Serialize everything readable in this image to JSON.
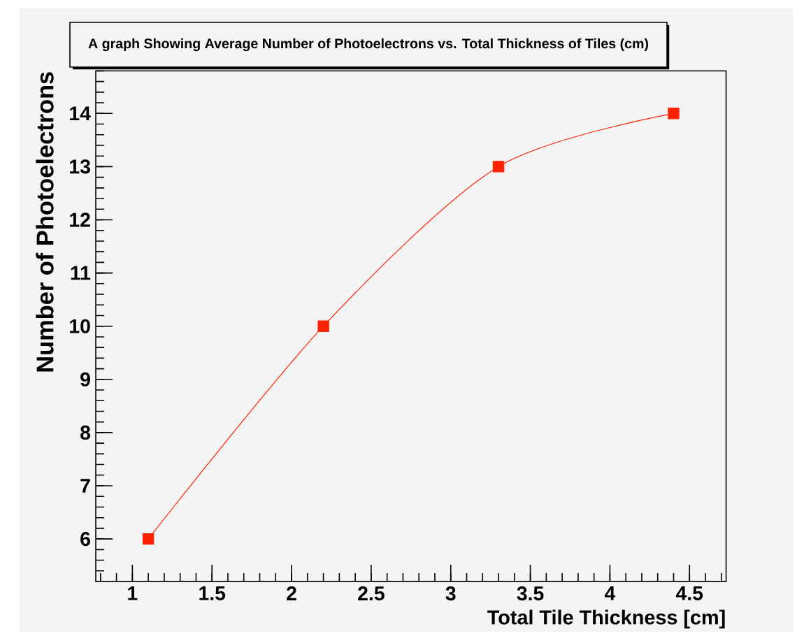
{
  "chart_data": {
    "type": "line",
    "title": "A graph Showing Average Number of Photoelectrons vs. Total Thickness of Tiles (cm)",
    "xlabel": "Total Tile Thickness [cm]",
    "ylabel": "Number of Photoelectrons",
    "x": [
      1.1,
      2.2,
      3.3,
      4.4
    ],
    "values": [
      6,
      10,
      13,
      14
    ],
    "color": "#ff2200",
    "marker": "square",
    "xlim": [
      0.77,
      4.73
    ],
    "ylim": [
      5.2,
      14.8
    ],
    "xticks": [
      1,
      1.5,
      2,
      2.5,
      3,
      3.5,
      4,
      4.5
    ],
    "yticks": [
      6,
      7,
      8,
      9,
      10,
      11,
      12,
      13,
      14
    ]
  }
}
